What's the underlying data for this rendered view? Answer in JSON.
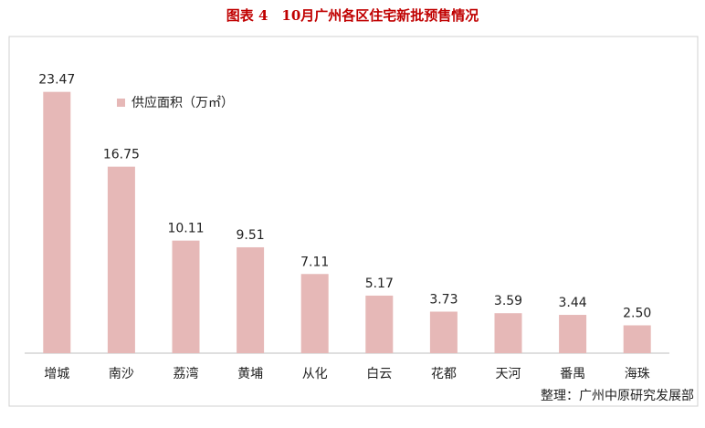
{
  "chart_data": {
    "type": "bar",
    "title": "图表 4　10月广州各区住宅新批预售情况",
    "legend": "供应面积（万㎡）",
    "source": "整理：广州中原研究发展部",
    "categories": [
      "增城",
      "南沙",
      "荔湾",
      "黄埔",
      "从化",
      "白云",
      "花都",
      "天河",
      "番禺",
      "海珠"
    ],
    "values": [
      23.47,
      16.75,
      10.11,
      9.51,
      7.11,
      5.17,
      3.73,
      3.59,
      3.44,
      2.5
    ],
    "value_labels": [
      "23.47",
      "16.75",
      "10.11",
      "9.51",
      "7.11",
      "5.17",
      "3.73",
      "3.59",
      "3.44",
      "2.50"
    ],
    "color": "#e6b8b7",
    "ylim": [
      0,
      25
    ]
  }
}
